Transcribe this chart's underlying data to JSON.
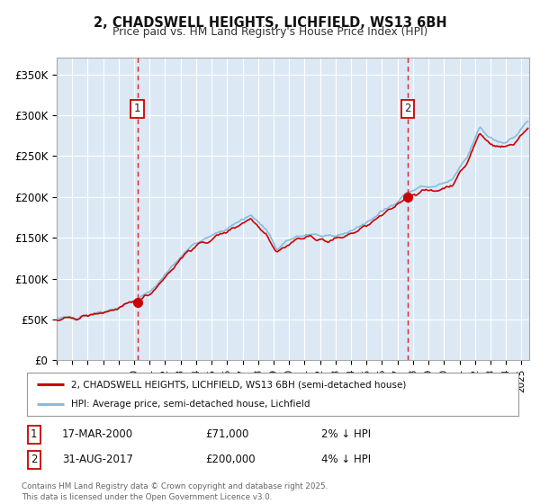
{
  "title": "2, CHADSWELL HEIGHTS, LICHFIELD, WS13 6BH",
  "subtitle": "Price paid vs. HM Land Registry's House Price Index (HPI)",
  "background_color": "#dce9f5",
  "ylim": [
    0,
    370000
  ],
  "xlim_start": 1995.0,
  "xlim_end": 2025.5,
  "yticks": [
    0,
    50000,
    100000,
    150000,
    200000,
    250000,
    300000,
    350000
  ],
  "ytick_labels": [
    "£0",
    "£50K",
    "£100K",
    "£150K",
    "£200K",
    "£250K",
    "£300K",
    "£350K"
  ],
  "purchase1_date": 2000.21,
  "purchase1_price": 71000,
  "purchase2_date": 2017.66,
  "purchase2_price": 200000,
  "legend_line1": "2, CHADSWELL HEIGHTS, LICHFIELD, WS13 6BH (semi-detached house)",
  "legend_line2": "HPI: Average price, semi-detached house, Lichfield",
  "table_row1": [
    "1",
    "17-MAR-2000",
    "£71,000",
    "2% ↓ HPI"
  ],
  "table_row2": [
    "2",
    "31-AUG-2017",
    "£200,000",
    "4% ↓ HPI"
  ],
  "footnote": "Contains HM Land Registry data © Crown copyright and database right 2025.\nThis data is licensed under the Open Government Licence v3.0.",
  "line_color_red": "#cc0000",
  "line_color_blue": "#88bbdd",
  "marker_color": "#cc0000",
  "vline_color": "#dd0000",
  "grid_color": "#ffffff",
  "hpi_anchors_x": [
    1995.0,
    1996.5,
    1997.5,
    1999.0,
    2000.0,
    2001.0,
    2002.0,
    2003.5,
    2005.0,
    2006.0,
    2007.5,
    2008.5,
    2009.2,
    2010.5,
    2011.5,
    2012.5,
    2013.5,
    2014.5,
    2015.5,
    2016.5,
    2017.5,
    2018.5,
    2019.5,
    2020.5,
    2021.5,
    2022.3,
    2022.8,
    2023.5,
    2024.0,
    2024.5,
    2025.4
  ],
  "hpi_anchors_y": [
    50000,
    54000,
    58000,
    65000,
    73000,
    83000,
    105000,
    138000,
    152000,
    162000,
    178000,
    160000,
    136000,
    152000,
    155000,
    149000,
    155000,
    163000,
    175000,
    188000,
    204000,
    212000,
    213000,
    220000,
    248000,
    285000,
    275000,
    268000,
    268000,
    272000,
    292000
  ]
}
